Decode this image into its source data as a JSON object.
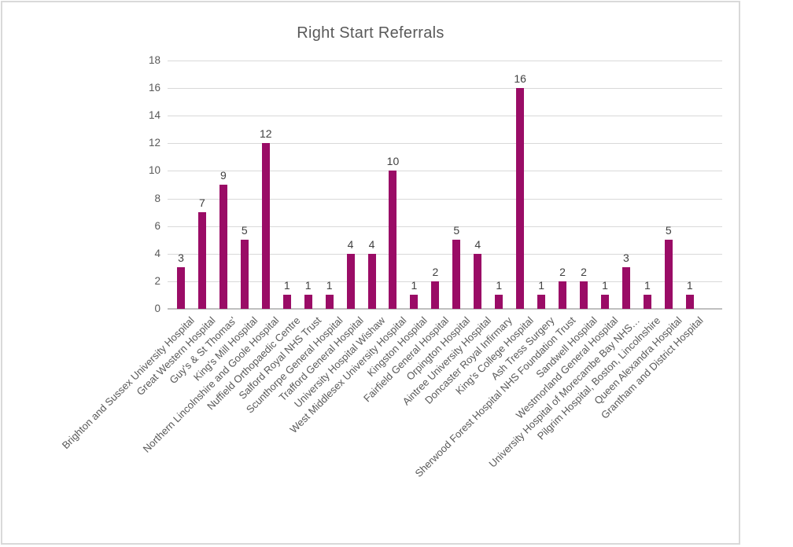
{
  "chart_data": {
    "type": "bar",
    "title": "Right Start Referrals",
    "categories": [
      "Brighton and Sussex University Hospital",
      "Great Western Hospital",
      "Guy's & St Thomas'",
      "King's Mill Hospital",
      "Northern Lincolnshire and Goole Hospital",
      "Nuffield Orthopaedic Centre",
      "Salford Royal NHS Trust",
      "Scunthorpe General Hospital",
      "Trafford General Hospital",
      "University Hospital Wishaw",
      "West Middlesex University Hospital",
      "Kingston Hospital",
      "Fairfield General Hospital",
      "Orpington Hospital",
      "Aintree University Hospital",
      "Doncaster Royal Infirmary",
      "King's College Hospital",
      "Ash Tress Surgery",
      "Sherwood Forest Hospital NHS Foundation Trust",
      "Sandwell Hospital",
      "Westmorland General Hospital",
      "University Hospital of Morecambe Bay NHS…",
      "Pilgrim Hospital, Boston, Lincolnshire",
      "Queen Alexandra Hospital",
      "Grantham and District Hospital"
    ],
    "values": [
      3,
      7,
      9,
      5,
      12,
      1,
      1,
      1,
      4,
      4,
      10,
      1,
      2,
      5,
      4,
      1,
      16,
      1,
      2,
      2,
      1,
      3,
      1,
      5,
      1
    ],
    "xlabel": "",
    "ylabel": "",
    "ylim": [
      0,
      18
    ],
    "yticks": [
      0,
      2,
      4,
      6,
      8,
      10,
      12,
      14,
      16,
      18
    ],
    "grid": true,
    "legend": false,
    "data_labels_shown": true,
    "colors": {
      "bar": "#9A0C66",
      "title_text": "#595959",
      "axis_text": "#595959",
      "data_label_text": "#404040",
      "gridline": "#D9D9D9",
      "axis_line": "#BFBFBF",
      "frame_border": "#D9D9D9"
    }
  }
}
